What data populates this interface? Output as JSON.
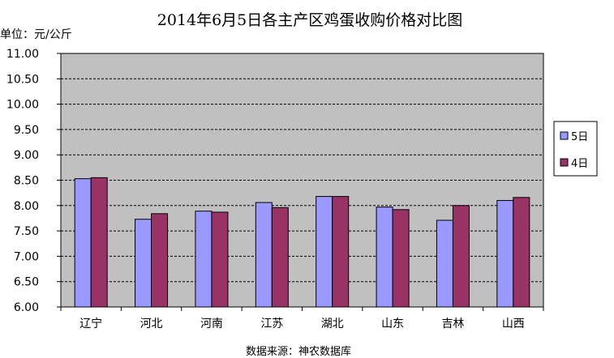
{
  "chart_data": {
    "type": "bar",
    "title": "2014年6月5日各主产区鸡蛋收购价格对比图",
    "unit_label": "单位：元/公斤",
    "source": "数据来源：神农数据库",
    "categories": [
      "辽宁",
      "河北",
      "河南",
      "江苏",
      "湖北",
      "山东",
      "吉林",
      "山西"
    ],
    "series": [
      {
        "name": "5日",
        "color": "#9999ff",
        "values": [
          8.53,
          7.73,
          7.89,
          8.06,
          8.18,
          7.97,
          7.71,
          8.1
        ]
      },
      {
        "name": "4日",
        "color": "#993366",
        "values": [
          8.55,
          7.84,
          7.87,
          7.96,
          8.18,
          7.92,
          8.0,
          8.16
        ]
      }
    ],
    "ylim": [
      6.0,
      11.0
    ],
    "yticks": [
      "6.00",
      "6.50",
      "7.00",
      "7.50",
      "8.00",
      "8.50",
      "9.00",
      "9.50",
      "10.00",
      "10.50",
      "11.00"
    ],
    "grid": true,
    "legend": "right",
    "plot_background": "#c0c0c0"
  }
}
